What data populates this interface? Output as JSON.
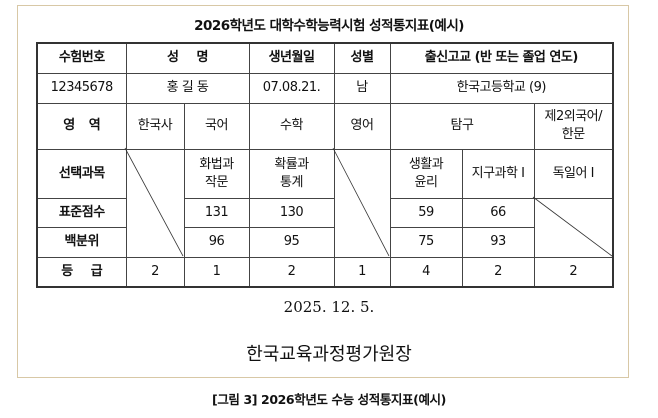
{
  "title": "2026학년도 대학수학능력시험 성적통지표(예시)",
  "header_row": {
    "exam_no": "수험번호",
    "name": "성 명",
    "birth": "생년월일",
    "sex": "성별",
    "school": "출신고교 (반 또는 졸업 연도)"
  },
  "info_row": {
    "exam_no": "12345678",
    "name": "홍 길 동",
    "birth": "07.08.21.",
    "sex": "남",
    "school": "한국고등학교 (9)"
  },
  "area_row": {
    "label": "영 역",
    "korean_history": "한국사",
    "korean": "국어",
    "math": "수학",
    "english": "영어",
    "inquiry": "탐구",
    "second_lang": "제2외국어/한문"
  },
  "elective_row": {
    "label": "선택과목",
    "korean": "화법과 작문",
    "math": "확률과 통계",
    "inquiry1": "생활과 윤리",
    "inquiry2": "지구과학 I",
    "second_lang": "독일어 I"
  },
  "standard_row": {
    "label": "표준점수",
    "korean": "131",
    "math": "130",
    "inquiry1": "59",
    "inquiry2": "66"
  },
  "percentile_row": {
    "label": "백분위",
    "korean": "96",
    "math": "95",
    "inquiry1": "75",
    "inquiry2": "93"
  },
  "grade_row": {
    "label": "등 급",
    "korean_history": "2",
    "korean": "1",
    "math": "2",
    "english": "1",
    "inquiry1": "4",
    "inquiry2": "2",
    "second_lang": "2"
  },
  "date": "2025. 12. 5.",
  "issuer": "한국교육과정평가원장",
  "caption": "[그림 3] 2026학년도 수능 성적통지표(예시)"
}
